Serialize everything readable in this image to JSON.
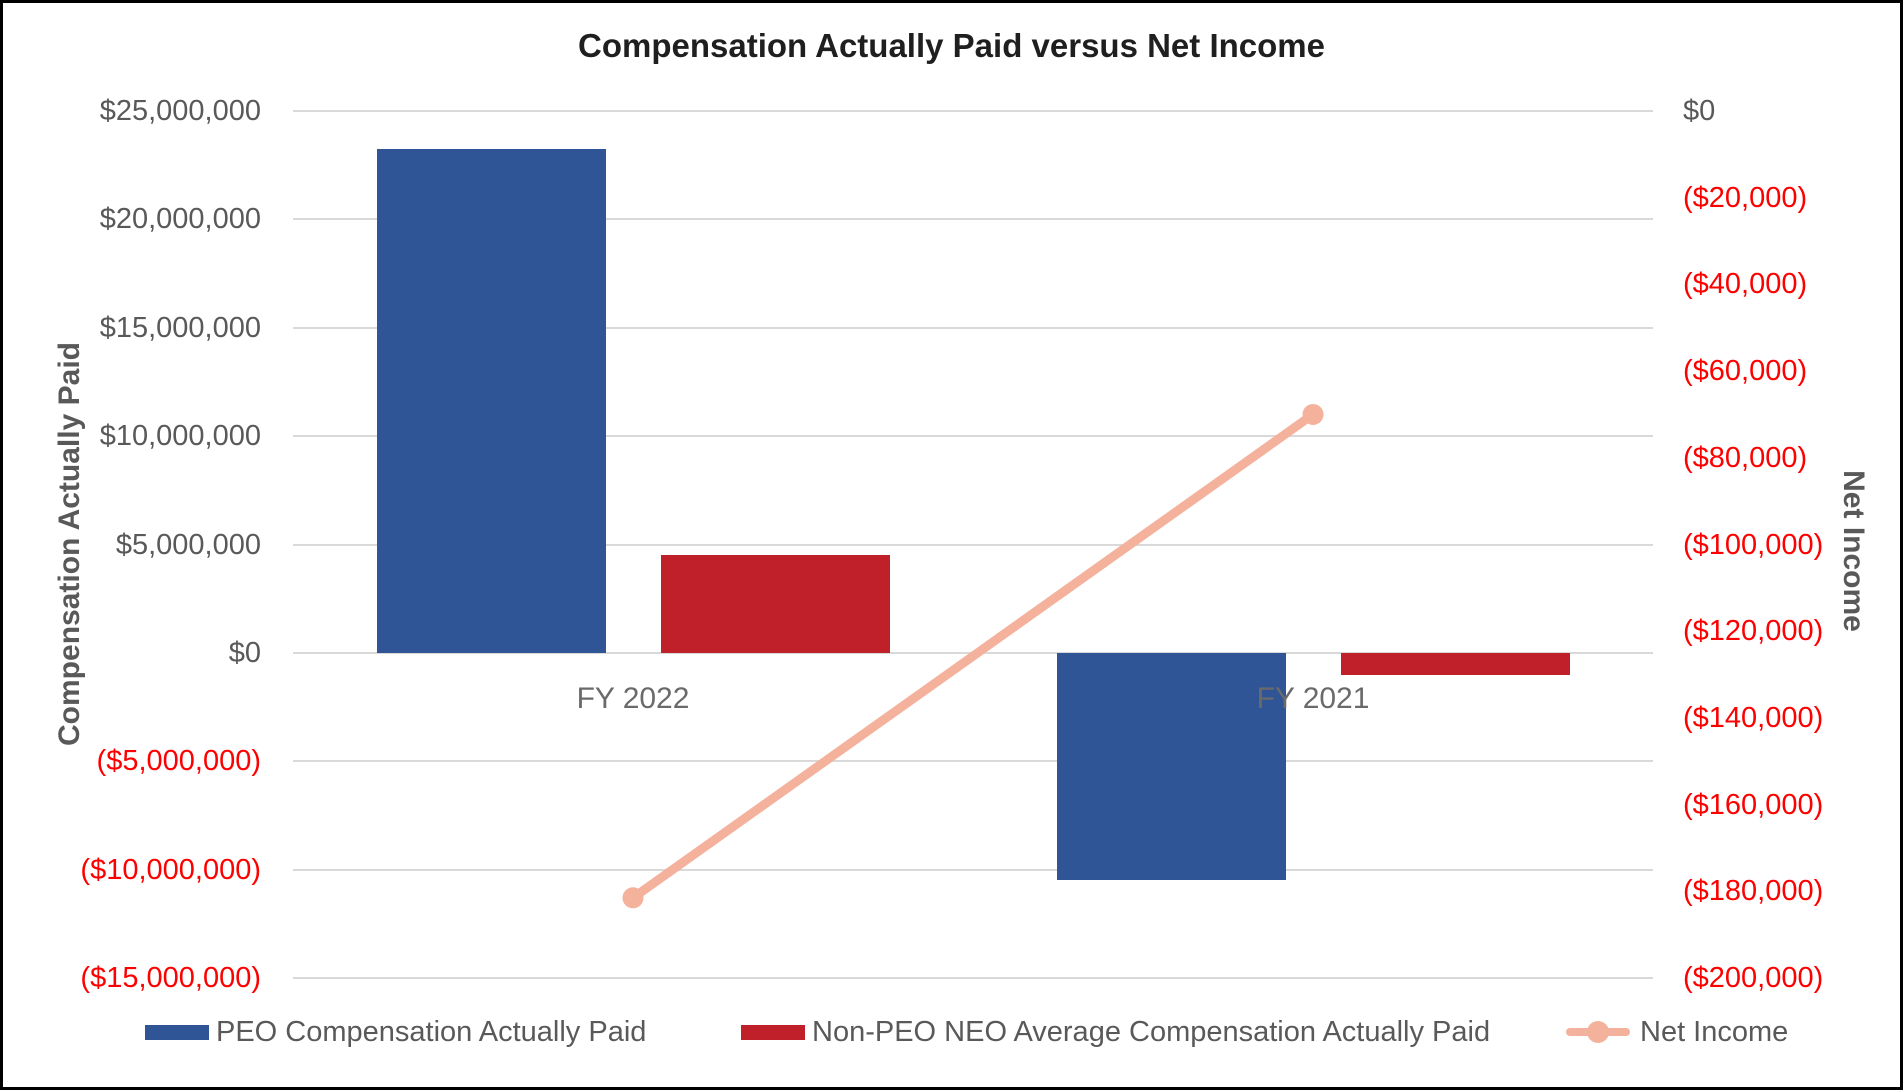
{
  "title": "Compensation Actually Paid versus Net Income",
  "colors": {
    "peo_bar": "#2f5597",
    "non_peo_bar": "#c0202a",
    "net_income_line": "#f4b19c",
    "negative_label": "#fe0000",
    "tick_label": "#595959",
    "gridline": "#d9d9d9",
    "title_text": "#1f1f1f"
  },
  "chart_data": {
    "type": "combo-bar-line",
    "categories": [
      "FY 2022",
      "FY 2021"
    ],
    "series": [
      {
        "name": "PEO Compensation Actually Paid",
        "type": "bar",
        "axis": "left",
        "color": "#2f5597",
        "values": [
          23250000,
          -10500000
        ]
      },
      {
        "name": "Non-PEO NEO Average Compensation Actually Paid",
        "type": "bar",
        "axis": "left",
        "color": "#c0202a",
        "values": [
          4500000,
          -1000000
        ]
      },
      {
        "name": "Net Income",
        "type": "line",
        "axis": "right",
        "color": "#f4b19c",
        "values": [
          -181500,
          -70000
        ]
      }
    ],
    "left_axis": {
      "title": "Compensation Actually Paid",
      "max": 25000000,
      "min": -15000000,
      "step": 5000000,
      "ticks": [
        {
          "label": "$25,000,000",
          "value": 25000000
        },
        {
          "label": "$20,000,000",
          "value": 20000000
        },
        {
          "label": "$15,000,000",
          "value": 15000000
        },
        {
          "label": "$10,000,000",
          "value": 10000000
        },
        {
          "label": "$5,000,000",
          "value": 5000000
        },
        {
          "label": "$0",
          "value": 0
        },
        {
          "label": "($5,000,000)",
          "value": -5000000
        },
        {
          "label": "($10,000,000)",
          "value": -10000000
        },
        {
          "label": "($15,000,000)",
          "value": -15000000
        }
      ]
    },
    "right_axis": {
      "title": "Net Income",
      "max": 0,
      "min": -200000,
      "step": 20000,
      "ticks": [
        {
          "label": "$0",
          "value": 0
        },
        {
          "label": "($20,000)",
          "value": -20000
        },
        {
          "label": "($40,000)",
          "value": -40000
        },
        {
          "label": "($60,000)",
          "value": -60000
        },
        {
          "label": "($80,000)",
          "value": -80000
        },
        {
          "label": "($100,000)",
          "value": -100000
        },
        {
          "label": "($120,000)",
          "value": -120000
        },
        {
          "label": "($140,000)",
          "value": -140000
        },
        {
          "label": "($160,000)",
          "value": -160000
        },
        {
          "label": "($180,000)",
          "value": -180000
        },
        {
          "label": "($200,000)",
          "value": -200000
        }
      ]
    },
    "legend_position": "bottom",
    "grid": true
  },
  "legend": {
    "items": [
      {
        "label": "PEO Compensation Actually Paid",
        "swatch": "bar",
        "color": "#2f5597"
      },
      {
        "label": "Non-PEO NEO Average Compensation Actually Paid",
        "swatch": "bar",
        "color": "#c0202a"
      },
      {
        "label": "Net Income",
        "swatch": "line-marker",
        "color": "#f4b19c"
      }
    ]
  }
}
